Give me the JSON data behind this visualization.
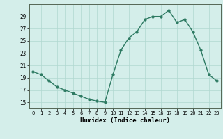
{
  "x": [
    0,
    1,
    2,
    3,
    4,
    5,
    6,
    7,
    8,
    9,
    10,
    11,
    12,
    13,
    14,
    15,
    16,
    17,
    18,
    19,
    20,
    21,
    22,
    23
  ],
  "y": [
    20,
    19.5,
    18.5,
    17.5,
    17,
    16.5,
    16,
    15.5,
    15.2,
    15,
    19.5,
    23.5,
    25.5,
    26.5,
    28.5,
    29,
    29,
    30,
    28,
    28.5,
    26.5,
    23.5,
    19.5,
    18.5
  ],
  "xlabel": "Humidex (Indice chaleur)",
  "ylim": [
    14,
    31
  ],
  "yticks": [
    15,
    17,
    19,
    21,
    23,
    25,
    27,
    29
  ],
  "xticks": [
    0,
    1,
    2,
    3,
    4,
    5,
    6,
    7,
    8,
    9,
    10,
    11,
    12,
    13,
    14,
    15,
    16,
    17,
    18,
    19,
    20,
    21,
    22,
    23
  ],
  "line_color": "#2d7a62",
  "marker_size": 2.5,
  "bg_color": "#d4eeea",
  "grid_color": "#b0d8d0",
  "line_width": 1.0
}
